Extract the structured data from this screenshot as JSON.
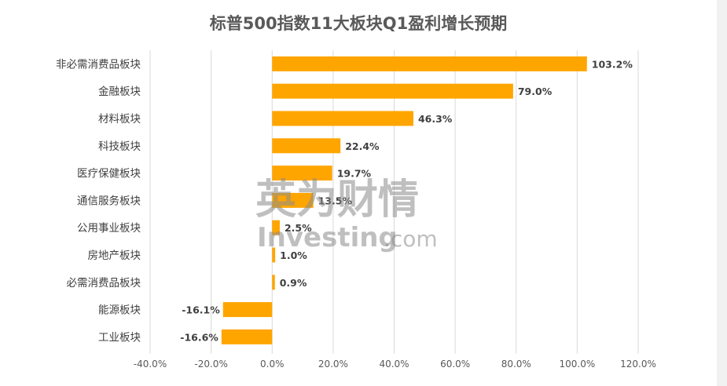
{
  "chart_data": {
    "type": "bar",
    "orientation": "horizontal",
    "title": "标普500指数11大板块Q1盈利增长预期",
    "categories": [
      "非必需消费品板块",
      "金融板块",
      "材料板块",
      "科技板块",
      "医疗保健板块",
      "通信服务板块",
      "公用事业板块",
      "房地产板块",
      "必需消费品板块",
      "能源板块",
      "工业板块"
    ],
    "values": [
      103.2,
      79.0,
      46.3,
      22.4,
      19.7,
      13.5,
      2.5,
      1.0,
      0.9,
      -16.1,
      -16.6
    ],
    "data_labels": [
      "103.2%",
      "79.0%",
      "46.3%",
      "22.4%",
      "19.7%",
      "13.5%",
      "2.5%",
      "1.0%",
      "0.9%",
      "-16.1%",
      "-16.6%"
    ],
    "xlim": [
      -40,
      120
    ],
    "x_ticks": [
      -40,
      -20,
      0,
      20,
      40,
      60,
      80,
      100,
      120
    ],
    "x_tick_labels": [
      "-40.0%",
      "-20.0%",
      "0.0%",
      "20.0%",
      "40.0%",
      "60.0%",
      "80.0%",
      "100.0%",
      "120.0%"
    ],
    "bar_color": "#FFA500",
    "grid": "vertical",
    "legend": "none"
  },
  "watermark": {
    "chinese": "英为财情",
    "english": "Investing",
    "suffix": ".com"
  }
}
